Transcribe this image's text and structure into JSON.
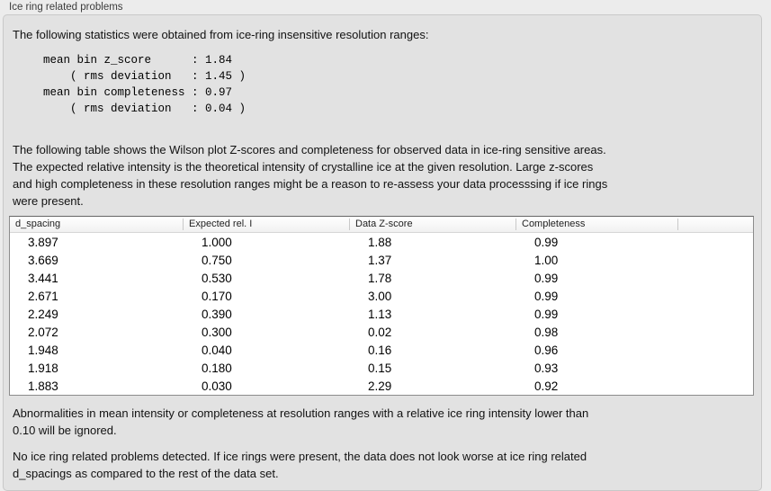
{
  "panel": {
    "title": "Ice ring related problems"
  },
  "intro": "The following statistics were obtained from ice-ring insensitive resolution ranges:",
  "stats": {
    "block": "mean bin z_score      : 1.84\n    ( rms deviation   : 1.45 )\nmean bin completeness : 0.97\n    ( rms deviation   : 0.04 )",
    "mean_bin_z_score": "1.84",
    "z_score_rms_deviation": "1.45",
    "mean_bin_completeness": "0.97",
    "completeness_rms_deviation": "0.04"
  },
  "description": "The following table shows the Wilson plot Z-scores and completeness for observed data in ice-ring sensitive areas.\nThe expected relative intensity is the theoretical intensity of crystalline ice at the given resolution. Large z-scores\nand high completeness in these resolution ranges might be a reason to re-assess your data processsing if ice rings\nwere present.",
  "table": {
    "columns": [
      "d_spacing",
      "Expected rel. I",
      "Data Z-score",
      "Completeness",
      ""
    ],
    "rows": [
      [
        "3.897",
        "1.000",
        "1.88",
        "0.99"
      ],
      [
        "3.669",
        "0.750",
        "1.37",
        "1.00"
      ],
      [
        "3.441",
        "0.530",
        "1.78",
        "0.99"
      ],
      [
        "2.671",
        "0.170",
        "3.00",
        "0.99"
      ],
      [
        "2.249",
        "0.390",
        "1.13",
        "0.99"
      ],
      [
        "2.072",
        "0.300",
        "0.02",
        "0.98"
      ],
      [
        "1.948",
        "0.040",
        "0.16",
        "0.96"
      ],
      [
        "1.918",
        "0.180",
        "0.15",
        "0.93"
      ],
      [
        "1.883",
        "0.030",
        "2.29",
        "0.92"
      ]
    ]
  },
  "notes": {
    "ignore_note": "Abnormalities in mean intensity or completeness at resolution ranges with a relative ice ring intensity lower than\n0.10 will be ignored.",
    "conclusion": "No ice ring related problems detected. If ice rings were present, the data does not look worse at ice ring related\nd_spacings as compared to the rest of the data set."
  },
  "ui_colors": {
    "window_background": "#ececec",
    "panel_background": "#e2e2e2",
    "table_background": "#ffffff"
  }
}
